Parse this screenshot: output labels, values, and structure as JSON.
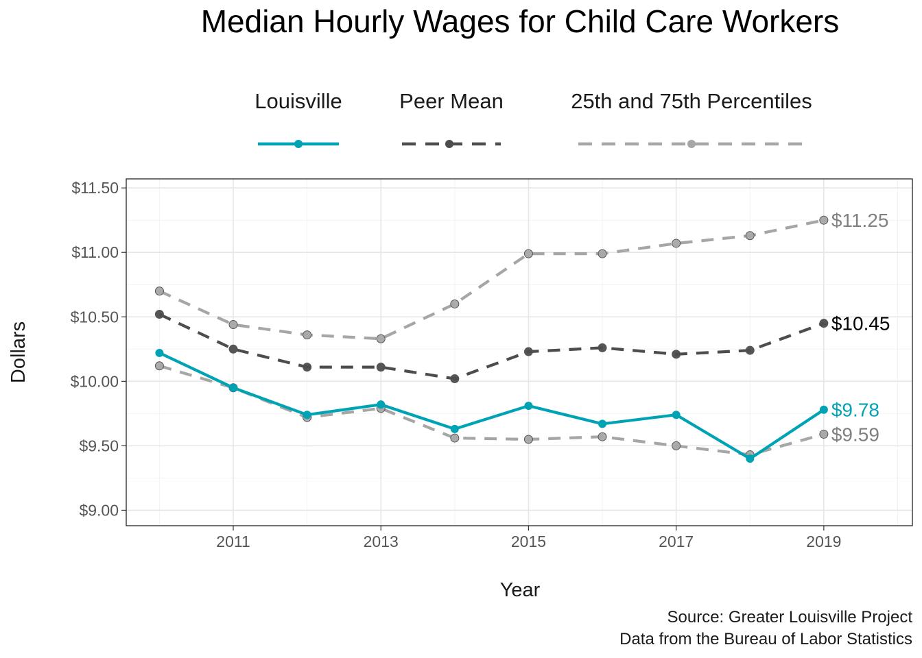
{
  "chart_data": {
    "type": "line",
    "title": "Median Hourly Wages for Child Care Workers",
    "xlabel": "Year",
    "ylabel": "Dollars",
    "x": [
      2010,
      2011,
      2012,
      2013,
      2014,
      2015,
      2016,
      2017,
      2018,
      2019
    ],
    "xlim": [
      2009.55,
      2020.2
    ],
    "ylim": [
      8.88,
      11.57
    ],
    "x_ticks": [
      2011,
      2013,
      2015,
      2017,
      2019
    ],
    "x_tick_labels": [
      "2011",
      "2013",
      "2015",
      "2017",
      "2019"
    ],
    "y_ticks": [
      9.0,
      9.5,
      10.0,
      10.5,
      11.0,
      11.5
    ],
    "y_tick_labels": [
      "$9.00",
      "$9.50",
      "$10.00",
      "$10.50",
      "$11.00",
      "$11.50"
    ],
    "grid": true,
    "legend_position": "top",
    "legend_entries": [
      "Louisville",
      "Peer Mean",
      "25th and 75th Percentiles"
    ],
    "series": [
      {
        "name": "Louisville",
        "color": "#00a3b4",
        "line_style": "solid",
        "values": [
          10.22,
          9.95,
          9.74,
          9.82,
          9.63,
          9.81,
          9.67,
          9.74,
          9.4,
          9.78
        ],
        "end_label": "$9.78"
      },
      {
        "name": "Peer Mean",
        "color": "#4d4d4d",
        "line_style": "dashed",
        "values": [
          10.52,
          10.25,
          10.11,
          10.11,
          10.02,
          10.23,
          10.26,
          10.21,
          10.24,
          10.45
        ],
        "end_label": "$10.45"
      },
      {
        "name": "75th Percentile",
        "legend_group": "25th and 75th Percentiles",
        "color": "#a6a6a6",
        "line_style": "dashed",
        "values": [
          10.7,
          10.44,
          10.36,
          10.33,
          10.6,
          10.99,
          10.99,
          11.07,
          11.13,
          11.25
        ],
        "end_label": "$11.25"
      },
      {
        "name": "25th Percentile",
        "legend_group": "25th and 75th Percentiles",
        "color": "#a6a6a6",
        "line_style": "dashed",
        "values": [
          10.12,
          9.95,
          9.72,
          9.79,
          9.56,
          9.55,
          9.57,
          9.5,
          9.43,
          9.59
        ],
        "end_label": "$9.59"
      }
    ],
    "end_label_colors": [
      "#00a3b4",
      "#000000",
      "#808080",
      "#808080"
    ]
  },
  "caption": {
    "line1": "Source: Greater Louisville Project",
    "line2": "Data from the Bureau of Labor Statistics"
  }
}
